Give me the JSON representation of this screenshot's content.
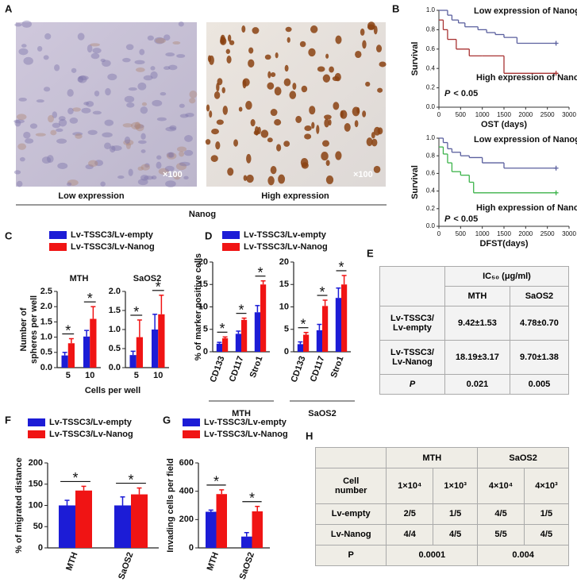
{
  "panel_labels": [
    "A",
    "B",
    "C",
    "D",
    "E",
    "F",
    "G",
    "H"
  ],
  "images": {
    "captions": [
      "Low expression",
      "High expression"
    ],
    "magnifications": [
      "×100",
      "×100"
    ],
    "group_label": "Nanog"
  },
  "chart_data": [
    {
      "type": "step",
      "ylabel": "Survival",
      "xlabel": "OST (days)",
      "annotations": [
        "Low expression of Nanog",
        "High expression of Nanog"
      ],
      "p_text": [
        "P",
        "< 0.05"
      ],
      "xlim": [
        0,
        3000
      ],
      "xticks": [
        0,
        500,
        1000,
        1500,
        2000,
        2500,
        3000
      ],
      "ylim": [
        0,
        1.0
      ],
      "yticks": [
        {
          "value": 0,
          "label": "0.0"
        },
        0.2,
        0.4,
        0.6,
        0.8,
        {
          "value": 1.0,
          "label": "1.0"
        }
      ],
      "series": [
        {
          "color": "#5a5f9e",
          "x": [
            0,
            200,
            300,
            450,
            600,
            900,
            1100,
            1300,
            1500,
            1800,
            2700
          ],
          "y": [
            1.0,
            0.95,
            0.9,
            0.87,
            0.83,
            0.8,
            0.77,
            0.75,
            0.72,
            0.66,
            0.66
          ]
        },
        {
          "color": "#a83232",
          "x": [
            0,
            100,
            200,
            400,
            700,
            1000,
            1500,
            2700
          ],
          "y": [
            0.9,
            0.8,
            0.7,
            0.6,
            0.53,
            0.53,
            0.35,
            0.35
          ]
        }
      ]
    },
    {
      "type": "step",
      "ylabel": "Survival",
      "xlabel": "DFST(days)",
      "annotations": [
        "Low expression of Nanog",
        "High expression of Nanog"
      ],
      "p_text": [
        "P",
        "< 0.05"
      ],
      "xlim": [
        0,
        3000
      ],
      "xticks": [
        0,
        500,
        1000,
        1500,
        2000,
        2500,
        3000
      ],
      "ylim": [
        0,
        1.0
      ],
      "yticks": [
        {
          "value": 0,
          "label": "0.0"
        },
        0.2,
        0.4,
        0.6,
        0.8,
        {
          "value": 1.0,
          "label": "1.0"
        }
      ],
      "series": [
        {
          "color": "#5a5f9e",
          "x": [
            0,
            100,
            200,
            300,
            500,
            700,
            1000,
            1500,
            2700
          ],
          "y": [
            1.0,
            0.95,
            0.88,
            0.84,
            0.8,
            0.78,
            0.72,
            0.66,
            0.66
          ]
        },
        {
          "color": "#3cb34a",
          "x": [
            0,
            100,
            200,
            300,
            500,
            700,
            800,
            2700
          ],
          "y": [
            0.9,
            0.82,
            0.72,
            0.62,
            0.58,
            0.5,
            0.38,
            0.38
          ]
        }
      ]
    },
    {
      "type": "bar",
      "legend": [
        {
          "name": "Lv-TSSC3/Lv-empty",
          "color": "#1c1cd6"
        },
        {
          "name": "Lv-TSSC3/Lv-Nanog",
          "color": "#f01414"
        }
      ],
      "ylabel": [
        "Number of",
        "spheres per well"
      ],
      "xlabel": "Cells per well",
      "groups": [
        {
          "title": "MTH",
          "categories": [
            "5",
            "10"
          ],
          "series": [
            {
              "values": [
                0.4,
                1.02
              ],
              "errors": [
                0.1,
                0.2
              ]
            },
            {
              "values": [
                0.8,
                1.6
              ],
              "errors": [
                0.15,
                0.4
              ]
            }
          ],
          "ylim": [
            0,
            2.5
          ],
          "yticks": [
            {
              "value": 0,
              "label": "0.0"
            },
            0.5,
            {
              "value": 1,
              "label": "1.0"
            },
            1.5,
            {
              "value": 2,
              "label": "2.0"
            },
            2.5
          ],
          "significance": [
            "*",
            "*"
          ]
        },
        {
          "title": "SaOS2",
          "categories": [
            "5",
            "10"
          ],
          "series": [
            {
              "values": [
                0.33,
                1.0
              ],
              "errors": [
                0.1,
                0.4
              ]
            },
            {
              "values": [
                0.8,
                1.4
              ],
              "errors": [
                0.45,
                0.5
              ]
            }
          ],
          "ylim": [
            0,
            2.0
          ],
          "yticks": [
            {
              "value": 0,
              "label": "0.0"
            },
            0.5,
            {
              "value": 1,
              "label": "1.0"
            },
            1.5,
            {
              "value": 2,
              "label": "2.0"
            }
          ],
          "significance": [
            "*",
            "*"
          ]
        }
      ]
    },
    {
      "type": "bar",
      "legend": [
        {
          "name": "Lv-TSSC3/Lv-empty",
          "color": "#1c1cd6"
        },
        {
          "name": "Lv-TSSC3/Lv-Nanog",
          "color": "#f01414"
        }
      ],
      "ylabel": [
        "% of marker positive cells"
      ],
      "groups": [
        {
          "title": "MTH",
          "categories": [
            "CD133",
            "CD117",
            "Stro1"
          ],
          "series": [
            {
              "values": [
                1.8,
                4,
                8.8
              ],
              "errors": [
                0.3,
                0.6,
                1.5
              ]
            },
            {
              "values": [
                3,
                7.1,
                15
              ],
              "errors": [
                0.3,
                0.4,
                0.8
              ]
            }
          ],
          "ylim": [
            0,
            20
          ],
          "yticks": [
            0,
            5,
            10,
            15,
            20
          ],
          "significance": [
            "*",
            "*",
            "*"
          ]
        },
        {
          "title": "SaOS2",
          "categories": [
            "CD133",
            "CD117",
            "Stro1"
          ],
          "series": [
            {
              "values": [
                1.7,
                4.8,
                12
              ],
              "errors": [
                0.5,
                1.3,
                2.2
              ]
            },
            {
              "values": [
                3.8,
                10.2,
                15
              ],
              "errors": [
                0.5,
                1.3,
                2
              ]
            }
          ],
          "ylim": [
            0,
            20
          ],
          "yticks": [
            0,
            5,
            10,
            15,
            20
          ],
          "significance": [
            "*",
            "*",
            "*"
          ]
        }
      ]
    },
    {
      "type": "bar",
      "legend": [
        {
          "name": "Lv-TSSC3/Lv-empty",
          "color": "#1c1cd6"
        },
        {
          "name": "Lv-TSSC3/Lv-Nanog",
          "color": "#f01414"
        }
      ],
      "ylabel": [
        "% of migrated distance"
      ],
      "groups": [
        {
          "categories": [
            "MTH",
            "SaOS2"
          ],
          "series": [
            {
              "values": [
                100,
                100
              ],
              "errors": [
                12,
                20
              ]
            },
            {
              "values": [
                135,
                126
              ],
              "errors": [
                10,
                15
              ]
            }
          ],
          "ylim": [
            0,
            200
          ],
          "yticks": [
            0,
            50,
            100,
            150,
            200
          ],
          "significance": [
            "*",
            "*"
          ]
        }
      ]
    },
    {
      "type": "bar",
      "legend": [
        {
          "name": "Lv-TSSC3/Lv-empty",
          "color": "#1c1cd6"
        },
        {
          "name": "Lv-TSSC3/Lv-Nanog",
          "color": "#f01414"
        }
      ],
      "ylabel": [
        "Invading cells per field"
      ],
      "groups": [
        {
          "categories": [
            "MTH",
            "SaOS2"
          ],
          "series": [
            {
              "values": [
                255,
                80
              ],
              "errors": [
                12,
                28
              ]
            },
            {
              "values": [
                380,
                258
              ],
              "errors": [
                30,
                35
              ]
            }
          ],
          "ylim": [
            0,
            600
          ],
          "yticks": [
            0,
            200,
            400,
            600
          ],
          "significance": [
            "*",
            "*"
          ]
        }
      ]
    }
  ],
  "table_e": {
    "header": "IC₅₀ (μg/ml)",
    "columns": [
      "MTH",
      "SaOS2"
    ],
    "rows": [
      {
        "label": [
          "Lv-TSSC3/",
          "Lv-empty"
        ],
        "cells": [
          "9.42±1.53",
          "4.78±0.70"
        ]
      },
      {
        "label": [
          "Lv-TSSC3/",
          "Lv-Nanog"
        ],
        "cells": [
          "18.19±3.17",
          "9.70±1.38"
        ]
      },
      {
        "label": [
          "P"
        ],
        "cells": [
          "0.021",
          "0.005"
        ]
      }
    ]
  },
  "table_h": {
    "groups": [
      "MTH",
      "SaOS2"
    ],
    "row_header": [
      "Cell",
      "number"
    ],
    "columns": [
      "1×10⁴",
      "1×10³",
      "4×10⁴",
      "4×10³"
    ],
    "rows": [
      {
        "label": "Lv-empty",
        "cells": [
          "2/5",
          "1/5",
          "4/5",
          "1/5"
        ]
      },
      {
        "label": "Lv-Nanog",
        "cells": [
          "4/4",
          "4/5",
          "5/5",
          "4/5"
        ]
      }
    ],
    "p_row": {
      "label": "P",
      "cells": [
        "0.0001",
        "0.004"
      ]
    }
  }
}
